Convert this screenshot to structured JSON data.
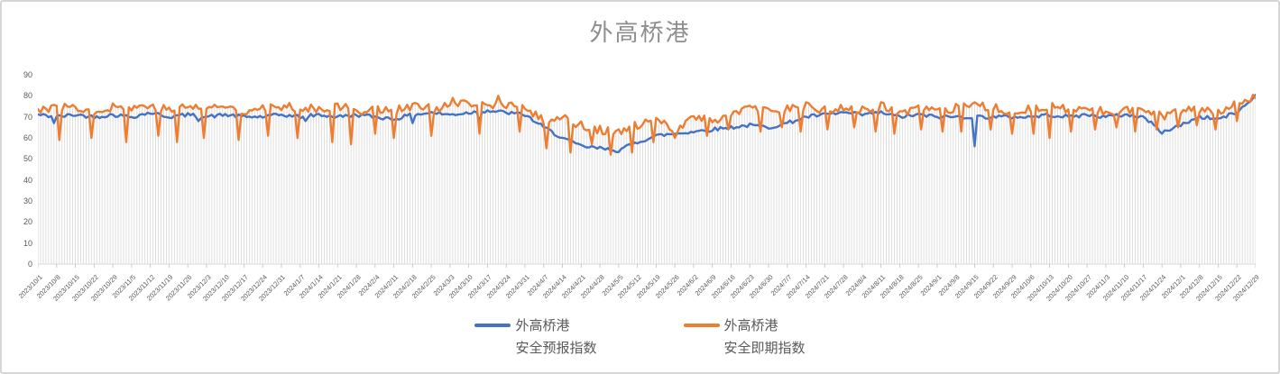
{
  "title": "外高桥港",
  "colors": {
    "series_forecast": "#4472C4",
    "series_current": "#ED7D31",
    "droplines": "#DBDBDB",
    "axis_line": "#D9D9D9",
    "axis_tick": "#BFBFBF",
    "title_text": "#8E8E8E",
    "tick_label_text": "#595959"
  },
  "legend": [
    {
      "line1": "外高桥港",
      "line2": "安全预报指数"
    },
    {
      "line1": "外高桥港",
      "line2": "安全即期指数"
    }
  ],
  "chart_data": {
    "type": "line",
    "title": "外高桥港",
    "xlabel": "",
    "ylabel": "",
    "ylim": [
      0,
      90
    ],
    "y_ticks": [
      0,
      10,
      20,
      30,
      40,
      50,
      60,
      70,
      80,
      90
    ],
    "grid": "vertical-droplines-only",
    "legend_position": "bottom",
    "days_total": 456,
    "x_tick_labels": [
      "2023/10/1",
      "2023/10/8",
      "2023/10/15",
      "2023/10/22",
      "2023/10/29",
      "2023/11/5",
      "2023/11/12",
      "2023/11/19",
      "2023/11/26",
      "2023/12/3",
      "2023/12/10",
      "2023/12/17",
      "2023/12/24",
      "2023/12/31",
      "2024/1/7",
      "2024/1/14",
      "2024/1/21",
      "2024/1/28",
      "2024/2/4",
      "2024/2/11",
      "2024/2/18",
      "2024/2/25",
      "2024/3/3",
      "2024/3/10",
      "2024/3/17",
      "2024/3/24",
      "2024/3/31",
      "2024/4/7",
      "2024/4/14",
      "2024/4/21",
      "2024/4/28",
      "2024/5/5",
      "2024/5/12",
      "2024/5/19",
      "2024/5/26",
      "2024/6/2",
      "2024/6/9",
      "2024/6/16",
      "2024/6/23",
      "2024/6/30",
      "2024/7/7",
      "2024/7/14",
      "2024/7/21",
      "2024/7/28",
      "2024/8/4",
      "2024/8/11",
      "2024/8/18",
      "2024/8/25",
      "2024/9/1",
      "2024/9/8",
      "2024/9/15",
      "2024/9/22",
      "2024/9/29",
      "2024/10/6",
      "2024/10/13",
      "2024/10/20",
      "2024/10/27",
      "2024/11/3",
      "2024/11/10",
      "2024/11/17",
      "2024/11/24",
      "2024/12/1",
      "2024/12/8",
      "2024/12/15",
      "2024/12/22",
      "2024/12/29"
    ],
    "series": [
      {
        "name": "外高桥港 安全预报指数",
        "color": "#4472C4",
        "noise_amplitude": 0.9,
        "weekly_values": [
          71,
          70,
          71,
          70,
          71,
          70,
          72,
          70,
          71,
          70,
          71,
          70,
          70,
          71,
          70,
          71,
          70,
          71,
          70,
          69,
          71,
          72,
          71,
          72,
          73,
          72,
          71,
          65,
          60,
          56,
          55,
          54,
          58,
          61,
          62,
          63,
          64,
          65,
          66,
          65,
          67,
          70,
          71,
          72,
          71,
          72,
          70,
          71,
          70,
          70,
          70,
          70,
          70,
          70,
          71,
          70,
          71,
          70,
          71,
          70,
          63,
          66,
          70,
          69,
          72,
          80
        ],
        "anomalies": [
          [
            6,
            67
          ],
          [
            60,
            68
          ],
          [
            100,
            68
          ],
          [
            140,
            67
          ],
          [
            165,
            68
          ],
          [
            350,
            56
          ],
          [
            420,
            62
          ],
          [
            455,
            80.5
          ]
        ]
      },
      {
        "name": "外高桥港 安全即期指数",
        "color": "#ED7D31",
        "noise_amplitude": 2.2,
        "weekly_values": [
          74,
          74,
          75,
          73,
          75,
          74,
          76,
          73,
          75,
          74,
          75,
          73,
          75,
          74,
          75,
          74,
          75,
          73,
          74,
          73,
          75,
          74,
          75,
          76,
          75,
          76,
          74,
          68,
          70,
          66,
          64,
          62,
          66,
          68,
          64,
          70,
          68,
          72,
          74,
          72,
          74,
          75,
          73,
          74,
          73,
          75,
          72,
          74,
          72,
          74,
          75,
          74,
          73,
          74,
          75,
          73,
          74,
          72,
          74,
          73,
          70,
          72,
          74,
          73,
          76,
          79
        ],
        "anomalies": [
          [
            8,
            59
          ],
          [
            20,
            60
          ],
          [
            33,
            58
          ],
          [
            45,
            61
          ],
          [
            52,
            58
          ],
          [
            62,
            60
          ],
          [
            75,
            59
          ],
          [
            86,
            61
          ],
          [
            97,
            60
          ],
          [
            110,
            58
          ],
          [
            117,
            57
          ],
          [
            126,
            62
          ],
          [
            133,
            60
          ],
          [
            147,
            61
          ],
          [
            155,
            79
          ],
          [
            165,
            62
          ],
          [
            172,
            80
          ],
          [
            180,
            63
          ],
          [
            190,
            55
          ],
          [
            199,
            53
          ],
          [
            207,
            57
          ],
          [
            214,
            52
          ],
          [
            222,
            53
          ],
          [
            230,
            58
          ],
          [
            238,
            60
          ],
          [
            250,
            61
          ],
          [
            258,
            64
          ],
          [
            270,
            63
          ],
          [
            278,
            65
          ],
          [
            285,
            63
          ],
          [
            295,
            64
          ],
          [
            305,
            65
          ],
          [
            313,
            63
          ],
          [
            320,
            62
          ],
          [
            330,
            64
          ],
          [
            338,
            63
          ],
          [
            345,
            63
          ],
          [
            356,
            64
          ],
          [
            364,
            62
          ],
          [
            372,
            62
          ],
          [
            378,
            60
          ],
          [
            386,
            63
          ],
          [
            395,
            64
          ],
          [
            403,
            65
          ],
          [
            410,
            63
          ],
          [
            418,
            64
          ],
          [
            426,
            65
          ],
          [
            433,
            66
          ],
          [
            440,
            64
          ],
          [
            448,
            68
          ]
        ]
      }
    ]
  }
}
